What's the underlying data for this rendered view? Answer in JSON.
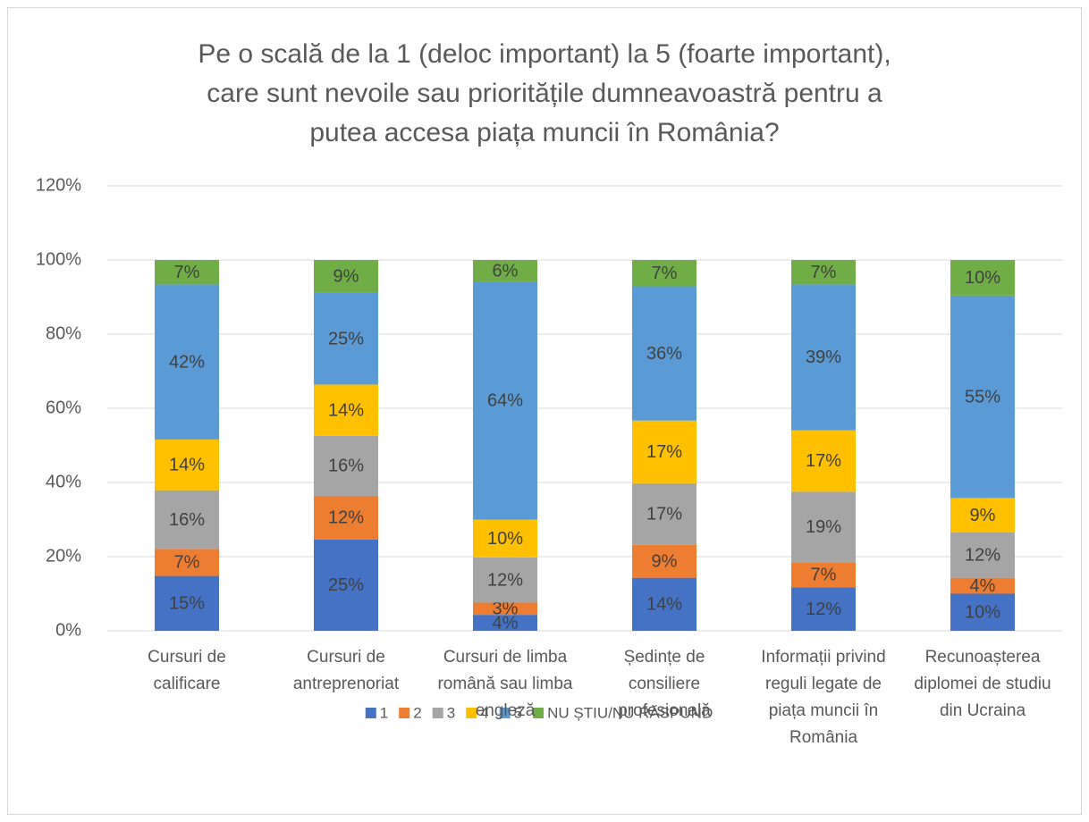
{
  "chart_data": {
    "type": "stacked_bar",
    "title": [
      "Pe o scală de la 1 (deloc important) la 5 (foarte important),",
      "care sunt nevoile sau prioritățile dumneavoastră pentru a",
      "putea accesa piața muncii în România?"
    ],
    "categories": [
      "Cursuri de calificare",
      "Cursuri de antreprenoriat",
      "Cursuri de limba română sau limba engleză",
      "Ședințe de consiliere profesională",
      "Informații privind reguli legate de piața muncii în România",
      "Recunoașterea diplomei de studiu din Ucraina"
    ],
    "series": [
      {
        "name": "1",
        "color": "#4472c4",
        "values": [
          14.8,
          24.6,
          4.3,
          14.3,
          11.7,
          10.0
        ],
        "value_labels": [
          "15%",
          "25%",
          "4%",
          "14%",
          "12%",
          "10%"
        ]
      },
      {
        "name": "2",
        "color": "#ed7d31",
        "values": [
          7.3,
          11.8,
          3.3,
          8.9,
          6.8,
          4.3
        ],
        "value_labels": [
          "7%",
          "12%",
          "3%",
          "9%",
          "7%",
          "4%"
        ]
      },
      {
        "name": "3",
        "color": "#a5a5a5",
        "values": [
          15.8,
          16.2,
          12.2,
          16.6,
          19.0,
          12.2
        ],
        "value_labels": [
          "16%",
          "16%",
          "12%",
          "17%",
          "19%",
          "12%"
        ]
      },
      {
        "name": "4",
        "color": "#ffc000",
        "values": [
          13.7,
          13.8,
          10.2,
          16.9,
          16.6,
          9.3
        ],
        "value_labels": [
          "14%",
          "14%",
          "10%",
          "17%",
          "17%",
          "9%"
        ]
      },
      {
        "name": "5",
        "color": "#5b9bd5",
        "values": [
          41.8,
          24.7,
          64.2,
          36.2,
          39.3,
          54.6
        ],
        "value_labels": [
          "42%",
          "25%",
          "64%",
          "36%",
          "39%",
          "55%"
        ]
      },
      {
        "name": "NU ȘTIU/NU RĂSPUND",
        "color": "#70ad47",
        "values": [
          6.6,
          8.9,
          5.8,
          7.1,
          6.6,
          9.6
        ],
        "value_labels": [
          "7%",
          "9%",
          "6%",
          "7%",
          "7%",
          "10%"
        ]
      }
    ],
    "ylim": [
      0,
      120
    ],
    "yticks": [
      {
        "value": 0,
        "label": "0%"
      },
      {
        "value": 20,
        "label": "20%"
      },
      {
        "value": 40,
        "label": "40%"
      },
      {
        "value": 60,
        "label": "60%"
      },
      {
        "value": 80,
        "label": "80%"
      },
      {
        "value": 100,
        "label": "100%"
      },
      {
        "value": 120,
        "label": "120%"
      }
    ],
    "grid": true,
    "legend": "bottom"
  }
}
